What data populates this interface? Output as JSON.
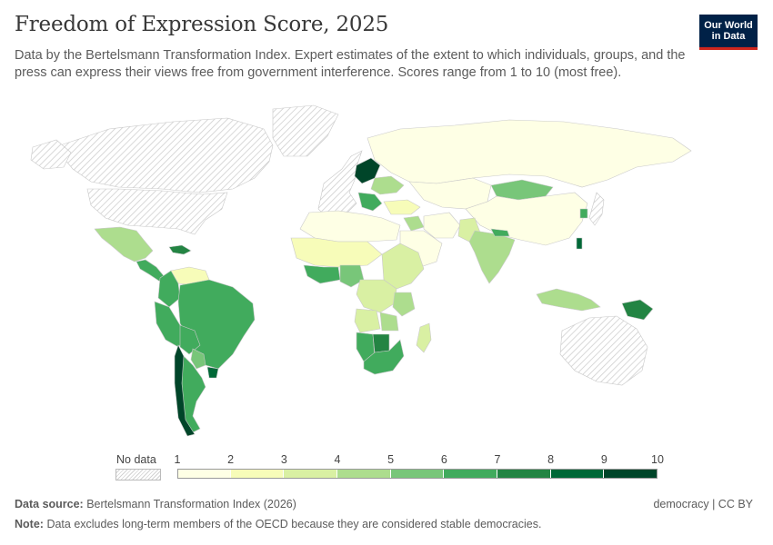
{
  "title": "Freedom of Expression Score, 2025",
  "subtitle": "Data by the Bertelsmann Transformation Index. Expert estimates of the extent to which individuals, groups, and the press can express their views free from government interference. Scores range from 1 to 10 (most free).",
  "logo": {
    "line1": "Our World",
    "line2": "in Data",
    "bg": "#002147",
    "accent": "#ce261e"
  },
  "legend": {
    "no_data_label": "No data",
    "ticks": [
      "1",
      "2",
      "3",
      "4",
      "5",
      "6",
      "7",
      "8",
      "9",
      "10"
    ],
    "colors": [
      "#feffe5",
      "#f7fcb9",
      "#d9f0a3",
      "#addd8e",
      "#78c679",
      "#41ab5d",
      "#238443",
      "#006837",
      "#004529"
    ]
  },
  "footer": {
    "source_label": "Data source:",
    "source_text": "Bertelsmann Transformation Index (2026)",
    "note_label": "Note:",
    "note_text": "Data excludes long-term members of the OECD because they are considered stable democracies.",
    "license": "democracy | CC BY"
  },
  "chart_data": {
    "type": "choropleth",
    "metric": "Freedom of expression score (1–10)",
    "year": 2025,
    "scale_min": 1,
    "scale_max": 10,
    "no_data_regions": [
      "United States",
      "Canada",
      "Greenland",
      "Australia",
      "Western Europe (OECD members)",
      "Japan"
    ],
    "regions": [
      {
        "name": "Mexico",
        "value": 4.5
      },
      {
        "name": "Central America",
        "value": 6.5
      },
      {
        "name": "Cuba",
        "value": 7.5
      },
      {
        "name": "Venezuela",
        "value": 2.5
      },
      {
        "name": "Colombia",
        "value": 6.5
      },
      {
        "name": "Brazil",
        "value": 6.5
      },
      {
        "name": "Peru",
        "value": 6.5
      },
      {
        "name": "Bolivia",
        "value": 6.5
      },
      {
        "name": "Paraguay",
        "value": 5.5
      },
      {
        "name": "Argentina",
        "value": 6.5
      },
      {
        "name": "Chile",
        "value": 9.5
      },
      {
        "name": "Uruguay",
        "value": 8.5
      },
      {
        "name": "Russia",
        "value": 1.5
      },
      {
        "name": "Kazakhstan & Central Asia",
        "value": 1.5
      },
      {
        "name": "Mongolia",
        "value": 5.5
      },
      {
        "name": "China",
        "value": 1.5
      },
      {
        "name": "India",
        "value": 4.5
      },
      {
        "name": "Pakistan",
        "value": 3.5
      },
      {
        "name": "Iran",
        "value": 1.5
      },
      {
        "name": "Saudi Arabia",
        "value": 1.5
      },
      {
        "name": "Iraq",
        "value": 4.5
      },
      {
        "name": "Turkey",
        "value": 2.5
      },
      {
        "name": "Nepal",
        "value": 6.5
      },
      {
        "name": "Indonesia",
        "value": 4.5
      },
      {
        "name": "Papua New Guinea",
        "value": 7.5
      },
      {
        "name": "Taiwan",
        "value": 8.5
      },
      {
        "name": "South Korea",
        "value": 6.5
      },
      {
        "name": "North Africa",
        "value": 1.5
      },
      {
        "name": "West Africa (Sahel)",
        "value": 2.5
      },
      {
        "name": "Ghana & coastal West Africa",
        "value": 6.5
      },
      {
        "name": "Nigeria",
        "value": 5.5
      },
      {
        "name": "Central Africa",
        "value": 3.5
      },
      {
        "name": "East Africa",
        "value": 3.5
      },
      {
        "name": "Tanzania",
        "value": 4.5
      },
      {
        "name": "Angola",
        "value": 3.5
      },
      {
        "name": "Zambia",
        "value": 4.5
      },
      {
        "name": "Namibia",
        "value": 6.5
      },
      {
        "name": "Botswana",
        "value": 7.5
      },
      {
        "name": "South Africa",
        "value": 6.5
      },
      {
        "name": "Madagascar",
        "value": 3.5
      },
      {
        "name": "Poland & Baltics",
        "value": 9.5
      },
      {
        "name": "Ukraine",
        "value": 4.5
      },
      {
        "name": "Balkans",
        "value": 6.5
      }
    ]
  }
}
